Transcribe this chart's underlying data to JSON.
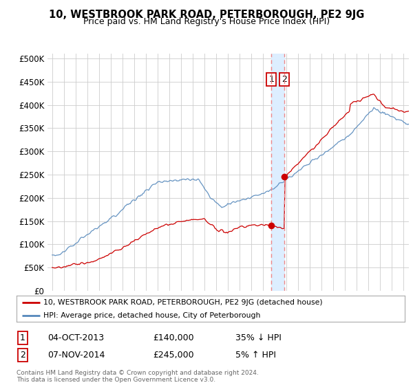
{
  "title": "10, WESTBROOK PARK ROAD, PETERBOROUGH, PE2 9JG",
  "subtitle": "Price paid vs. HM Land Registry's House Price Index (HPI)",
  "legend_line1": "10, WESTBROOK PARK ROAD, PETERBOROUGH, PE2 9JG (detached house)",
  "legend_line2": "HPI: Average price, detached house, City of Peterborough",
  "footer": "Contains HM Land Registry data © Crown copyright and database right 2024.\nThis data is licensed under the Open Government Licence v3.0.",
  "sale1_date": "04-OCT-2013",
  "sale1_price": "£140,000",
  "sale1_hpi": "35% ↓ HPI",
  "sale2_date": "07-NOV-2014",
  "sale2_price": "£245,000",
  "sale2_hpi": "5% ↑ HPI",
  "sale1_year": 2013.75,
  "sale1_value": 140000,
  "sale2_year": 2014.85,
  "sale2_value": 245000,
  "ylabel_ticks": [
    "£0",
    "£50K",
    "£100K",
    "£150K",
    "£200K",
    "£250K",
    "£300K",
    "£350K",
    "£400K",
    "£450K",
    "£500K"
  ],
  "ytick_values": [
    0,
    50000,
    100000,
    150000,
    200000,
    250000,
    300000,
    350000,
    400000,
    450000,
    500000
  ],
  "red_color": "#cc0000",
  "blue_color": "#5588bb",
  "shade_color": "#ddeeff",
  "dashed_color": "#ee8888",
  "background": "#ffffff",
  "grid_color": "#cccccc"
}
